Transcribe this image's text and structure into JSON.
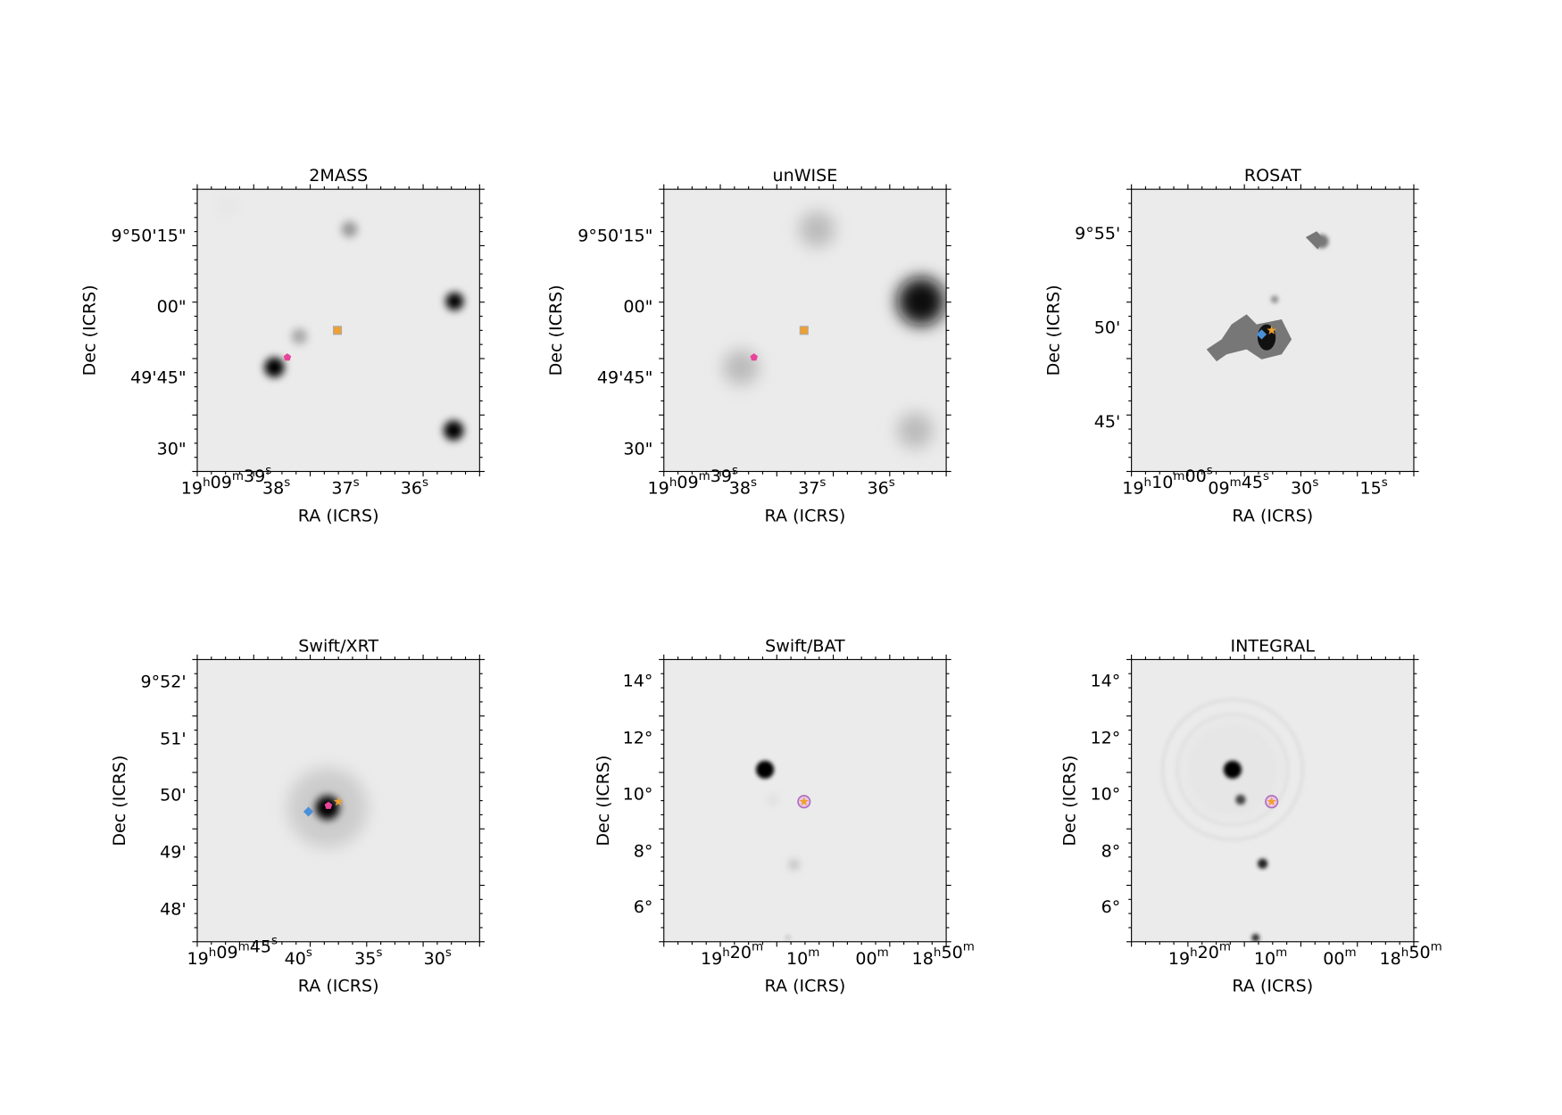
{
  "panels": [
    {
      "title": "2MASS",
      "xlabel": "RA (ICRS)",
      "ylabel": "Dec (ICRS)",
      "xticks": [
        "19h09m39s",
        "38s",
        "37s",
        "36s"
      ],
      "yticks": [
        "9°50'15\"",
        "00\"",
        "49'45\"",
        "30\""
      ]
    },
    {
      "title": "unWISE",
      "xlabel": "RA (ICRS)",
      "ylabel": "Dec (ICRS)",
      "xticks": [
        "19h09m39s",
        "38s",
        "37s",
        "36s"
      ],
      "yticks": [
        "9°50'15\"",
        "00\"",
        "49'45\"",
        "30\""
      ]
    },
    {
      "title": "ROSAT",
      "xlabel": "RA (ICRS)",
      "ylabel": "Dec (ICRS)",
      "xticks": [
        "19h10m00s",
        "09m45s",
        "30s",
        "15s"
      ],
      "yticks": [
        "9°55'",
        "50'",
        "45'"
      ]
    },
    {
      "title": "Swift/XRT",
      "xlabel": "RA (ICRS)",
      "ylabel": "Dec (ICRS)",
      "xticks": [
        "19h09m45s",
        "40s",
        "35s",
        "30s"
      ],
      "yticks": [
        "9°52'",
        "51'",
        "50'",
        "49'",
        "48'"
      ]
    },
    {
      "title": "Swift/BAT",
      "xlabel": "RA (ICRS)",
      "ylabel": "Dec (ICRS)",
      "xticks": [
        "19h20m",
        "10m",
        "00m",
        "18h50m"
      ],
      "yticks": [
        "14°",
        "12°",
        "10°",
        "8°",
        "6°"
      ]
    },
    {
      "title": "INTEGRAL",
      "xlabel": "RA (ICRS)",
      "ylabel": "Dec (ICRS)",
      "xticks": [
        "19h20m",
        "10m",
        "00m",
        "18h50m"
      ],
      "yticks": [
        "14°",
        "12°",
        "10°",
        "8°",
        "6°"
      ]
    }
  ]
}
